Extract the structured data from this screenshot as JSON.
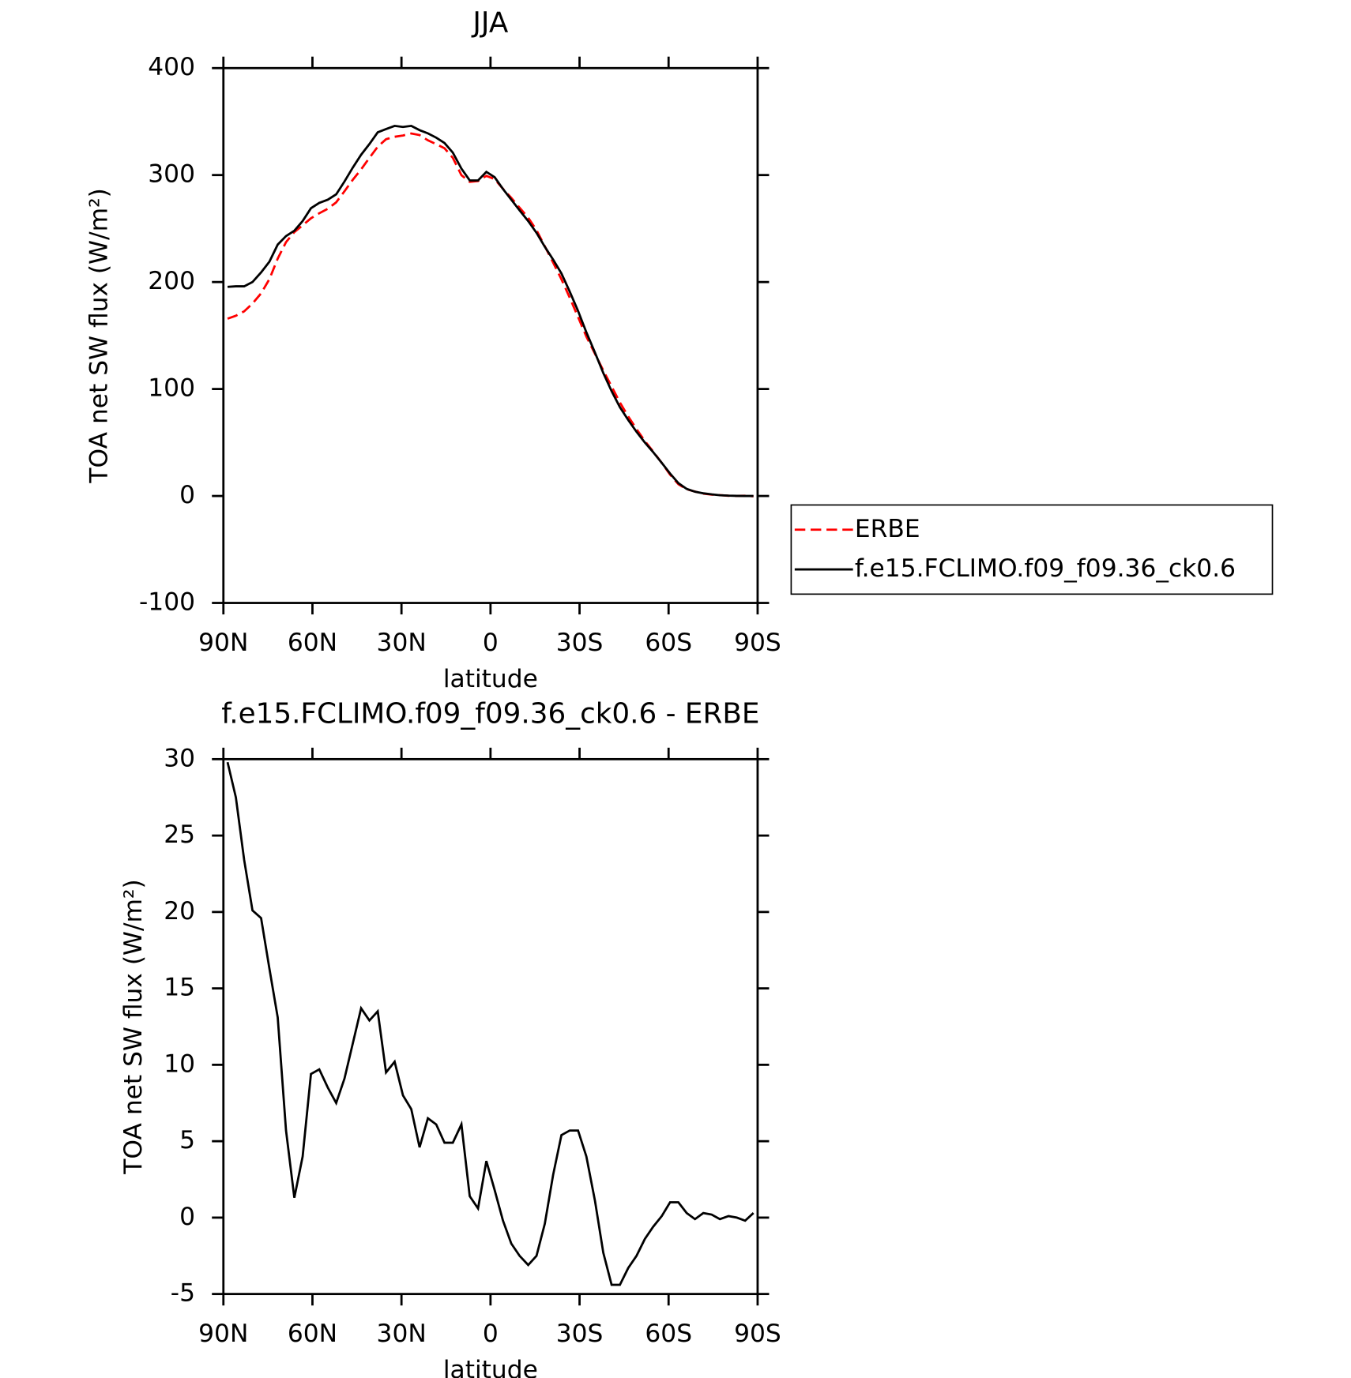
{
  "chart_data": [
    {
      "type": "line",
      "title": "JJA",
      "x_label": "latitude",
      "y_label": "TOA net SW flux (W/m²)",
      "x": [
        88.6,
        85.8,
        83.0,
        80.2,
        77.3,
        74.5,
        71.7,
        68.9,
        66.1,
        63.3,
        60.5,
        57.7,
        54.8,
        52.0,
        49.2,
        46.4,
        43.6,
        40.8,
        38.0,
        35.2,
        32.3,
        29.5,
        26.7,
        23.9,
        21.1,
        18.3,
        15.5,
        12.7,
        9.8,
        7.0,
        4.2,
        1.4,
        -1.4,
        -4.2,
        -7.0,
        -9.8,
        -12.7,
        -15.5,
        -18.3,
        -21.1,
        -23.9,
        -26.7,
        -29.5,
        -32.3,
        -35.2,
        -38.0,
        -40.8,
        -43.6,
        -46.4,
        -49.2,
        -52.0,
        -54.8,
        -57.7,
        -60.5,
        -63.3,
        -66.1,
        -68.9,
        -71.7,
        -74.5,
        -77.3,
        -80.2,
        -83.0,
        -85.8,
        -88.6
      ],
      "series": [
        {
          "name": "ERBE",
          "color": "#ff0000",
          "line_style": "dashed",
          "values": [
            165.7,
            168.5,
            172.6,
            179.9,
            189.4,
            202.7,
            221.9,
            237.3,
            246.7,
            253,
            259.6,
            264.3,
            268.5,
            274.5,
            284.9,
            295.6,
            305.3,
            316.1,
            326.5,
            333.5,
            335.8,
            337,
            338.9,
            337.4,
            332.5,
            328.9,
            325.1,
            316.1,
            299.9,
            293.6,
            294.4,
            299.3,
            296.2,
            287.2,
            278.7,
            269.5,
            260.1,
            248.5,
            233.4,
            218.2,
            202.6,
            185.3,
            167.3,
            149,
            132.9,
            117.3,
            102.4,
            87.4,
            74.3,
            62.5,
            51.4,
            41.6,
            30.9,
            20,
            11,
            6.3,
            4.1,
            2.2,
            1.3,
            0.8,
            0.2,
            0.1,
            0.2,
            -0.3
          ]
        },
        {
          "name": "f.e15.FCLIMO.f09_f09.36_ck0.6",
          "color": "#000000",
          "line_style": "solid",
          "values": [
            195.5,
            196,
            196,
            200,
            209,
            219,
            235,
            243,
            248,
            257,
            269,
            274,
            277,
            282,
            294,
            307,
            319,
            329,
            340,
            343,
            346,
            345,
            346,
            342,
            339,
            335,
            330,
            321,
            306,
            295,
            295,
            303,
            298,
            287,
            277,
            267,
            257,
            246,
            233,
            221,
            208,
            191,
            173,
            153,
            134,
            115,
            98,
            83,
            71,
            60,
            50,
            41,
            31,
            21,
            12,
            6.6,
            4,
            2.5,
            1.5,
            0.7,
            0.3,
            0.1,
            0,
            0
          ]
        }
      ],
      "xlim": [
        90,
        -90
      ],
      "xticks": [
        {
          "value": 90,
          "label": "90N"
        },
        {
          "value": 60,
          "label": "60N"
        },
        {
          "value": 30,
          "label": "30N"
        },
        0,
        {
          "value": -30,
          "label": "30S"
        },
        {
          "value": -60,
          "label": "60S"
        },
        {
          "value": -90,
          "label": "90S"
        }
      ],
      "ylim": [
        -100,
        400
      ],
      "yticks": [
        -100,
        0,
        100,
        200,
        300,
        400
      ],
      "legend_position": "right"
    },
    {
      "type": "line",
      "title": "f.e15.FCLIMO.f09_f09.36_ck0.6 - ERBE",
      "x_label": "latitude",
      "y_label": "TOA net SW flux (W/m²)",
      "x": [
        88.6,
        85.8,
        83.0,
        80.2,
        77.3,
        74.5,
        71.7,
        68.9,
        66.1,
        63.3,
        60.5,
        57.7,
        54.8,
        52.0,
        49.2,
        46.4,
        43.6,
        40.8,
        38.0,
        35.2,
        32.3,
        29.5,
        26.7,
        23.9,
        21.1,
        18.3,
        15.5,
        12.7,
        9.8,
        7.0,
        4.2,
        1.4,
        -1.4,
        -4.2,
        -7.0,
        -9.8,
        -12.7,
        -15.5,
        -18.3,
        -21.1,
        -23.9,
        -26.7,
        -29.5,
        -32.3,
        -35.2,
        -38.0,
        -40.8,
        -43.6,
        -46.4,
        -49.2,
        -52.0,
        -54.8,
        -57.7,
        -60.5,
        -63.3,
        -66.1,
        -68.9,
        -71.7,
        -74.5,
        -77.3,
        -80.2,
        -83.0,
        -85.8,
        -88.6
      ],
      "values": [
        29.8,
        27.5,
        23.4,
        20.1,
        19.6,
        16.3,
        13.1,
        5.7,
        1.3,
        4.0,
        9.4,
        9.7,
        8.5,
        7.5,
        9.1,
        11.4,
        13.7,
        12.9,
        13.5,
        9.5,
        10.2,
        8.0,
        7.1,
        4.6,
        6.5,
        6.1,
        4.9,
        4.9,
        6.1,
        1.4,
        0.6,
        3.7,
        1.8,
        -0.2,
        -1.7,
        -2.5,
        -3.1,
        -2.5,
        -0.4,
        2.8,
        5.4,
        5.7,
        5.7,
        4.0,
        1.1,
        -2.3,
        -4.4,
        -4.4,
        -3.3,
        -2.5,
        -1.4,
        -0.6,
        0.1,
        1.0,
        1.0,
        0.3,
        -0.1,
        0.3,
        0.2,
        -0.1,
        0.1,
        0.0,
        -0.2,
        0.3
      ],
      "color": "#000000",
      "xlim": [
        90,
        -90
      ],
      "xticks": [
        {
          "value": 90,
          "label": "90N"
        },
        {
          "value": 60,
          "label": "60N"
        },
        {
          "value": 30,
          "label": "30N"
        },
        0,
        {
          "value": -30,
          "label": "30S"
        },
        {
          "value": -60,
          "label": "60S"
        },
        {
          "value": -90,
          "label": "90S"
        }
      ],
      "ylim": [
        -5,
        30
      ],
      "yticks": [
        -5,
        0,
        5,
        10,
        15,
        20,
        25,
        30
      ]
    }
  ]
}
